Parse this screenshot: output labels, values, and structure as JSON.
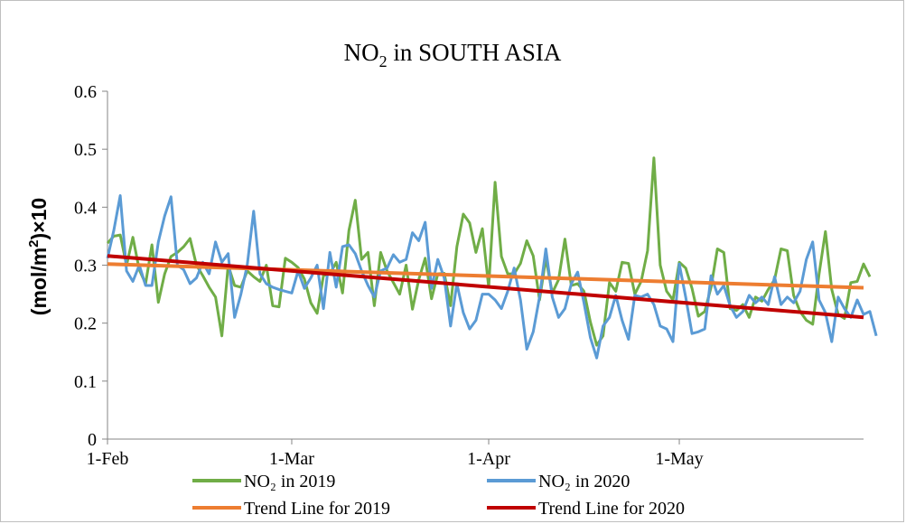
{
  "chart_data": {
    "type": "line",
    "title": {
      "main": "NO",
      "sub": "2",
      "rest": " in SOUTH ASIA"
    },
    "ylabel": {
      "pre": "(mol/m",
      "sup": "2",
      "post": ")×10"
    },
    "xlabel": "",
    "ylim": [
      0,
      0.6
    ],
    "y_ticks": [
      "0",
      "0.1",
      "0.2",
      "0.3",
      "0.4",
      "0.5",
      "0.6"
    ],
    "x_range": [
      "2020-02-01",
      "2020-05-30"
    ],
    "x_ticks": [
      {
        "date": "2020-02-01",
        "label": "1-Feb"
      },
      {
        "date": "2020-03-01",
        "label": "1-Mar"
      },
      {
        "date": "2020-04-01",
        "label": "1-Apr"
      },
      {
        "date": "2020-05-01",
        "label": "1-May"
      }
    ],
    "grid": false,
    "legend_position": "bottom",
    "colors": {
      "s2019": "#70ad47",
      "s2020": "#5b9bd5",
      "t2019": "#ed7d31",
      "t2020": "#c00000"
    },
    "series": [
      {
        "name": "NO₂ in 2019",
        "color": "#70ad47",
        "start_date": "2020-02-01",
        "values": [
          0.338,
          0.35,
          0.352,
          0.3,
          0.348,
          0.292,
          0.268,
          0.335,
          0.236,
          0.285,
          0.315,
          0.322,
          0.332,
          0.346,
          0.3,
          0.282,
          0.262,
          0.245,
          0.178,
          0.3,
          0.265,
          0.262,
          0.29,
          0.28,
          0.272,
          0.3,
          0.23,
          0.228,
          0.312,
          0.305,
          0.296,
          0.276,
          0.235,
          0.217,
          0.282,
          0.285,
          0.305,
          0.252,
          0.36,
          0.412,
          0.31,
          0.322,
          0.23,
          0.322,
          0.29,
          0.27,
          0.25,
          0.3,
          0.224,
          0.275,
          0.312,
          0.242,
          0.285,
          0.286,
          0.23,
          0.332,
          0.388,
          0.373,
          0.322,
          0.363,
          0.262,
          0.443,
          0.315,
          0.285,
          0.285,
          0.303,
          0.342,
          0.316,
          0.24,
          0.312,
          0.252,
          0.275,
          0.345,
          0.265,
          0.268,
          0.255,
          0.202,
          0.162,
          0.178,
          0.27,
          0.255,
          0.305,
          0.303,
          0.25,
          0.272,
          0.325,
          0.485,
          0.3,
          0.255,
          0.24,
          0.305,
          0.295,
          0.26,
          0.212,
          0.22,
          0.262,
          0.328,
          0.322,
          0.225,
          0.222,
          0.232,
          0.21,
          0.245,
          0.238,
          0.258,
          0.275,
          0.328,
          0.325,
          0.248,
          0.22,
          0.205,
          0.198,
          0.285,
          0.358,
          0.258,
          0.215,
          0.208,
          0.27,
          0.272,
          0.302,
          0.28
        ]
      },
      {
        "name": "NO₂ in 2020",
        "color": "#5b9bd5",
        "start_date": "2020-02-01",
        "values": [
          0.312,
          0.36,
          0.42,
          0.29,
          0.272,
          0.3,
          0.265,
          0.265,
          0.34,
          0.385,
          0.418,
          0.3,
          0.292,
          0.268,
          0.278,
          0.305,
          0.285,
          0.34,
          0.305,
          0.32,
          0.21,
          0.25,
          0.3,
          0.393,
          0.285,
          0.268,
          0.262,
          0.258,
          0.255,
          0.252,
          0.29,
          0.26,
          0.278,
          0.3,
          0.225,
          0.322,
          0.262,
          0.332,
          0.335,
          0.32,
          0.29,
          0.265,
          0.245,
          0.29,
          0.295,
          0.318,
          0.305,
          0.31,
          0.356,
          0.342,
          0.374,
          0.26,
          0.31,
          0.278,
          0.195,
          0.268,
          0.218,
          0.19,
          0.205,
          0.25,
          0.25,
          0.24,
          0.225,
          0.255,
          0.295,
          0.24,
          0.155,
          0.185,
          0.245,
          0.328,
          0.245,
          0.21,
          0.225,
          0.268,
          0.288,
          0.235,
          0.175,
          0.14,
          0.195,
          0.21,
          0.248,
          0.205,
          0.172,
          0.248,
          0.245,
          0.25,
          0.232,
          0.195,
          0.19,
          0.168,
          0.302,
          0.245,
          0.182,
          0.185,
          0.19,
          0.282,
          0.25,
          0.265,
          0.23,
          0.21,
          0.22,
          0.248,
          0.235,
          0.245,
          0.232,
          0.28,
          0.232,
          0.245,
          0.235,
          0.255,
          0.31,
          0.34,
          0.24,
          0.218,
          0.168,
          0.245,
          0.225,
          0.21,
          0.24,
          0.215,
          0.22,
          0.178
        ]
      }
    ],
    "trends": [
      {
        "name": "Trend Line for 2019",
        "color": "#ed7d31",
        "start": 0.302,
        "end": 0.261
      },
      {
        "name": "Trend Line for 2020",
        "color": "#c00000",
        "start": 0.316,
        "end": 0.21
      }
    ]
  }
}
